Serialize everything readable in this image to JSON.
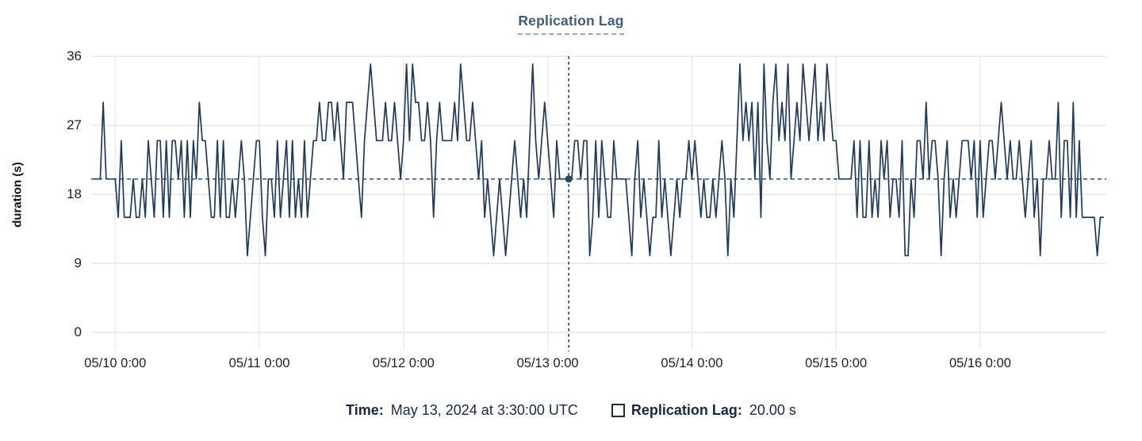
{
  "title": "Replication Lag",
  "colors": {
    "line": "#1e3a5f",
    "crosshair_h": "#2f587a",
    "crosshair_v": "#2e5a6e",
    "marker_dot": "#2b4964",
    "grid": "#e6e6e6",
    "title_text": "#3d5c80",
    "tick_text": "#1f1f1f",
    "footer_text": "#13294e"
  },
  "footer": {
    "time_label": "Time:",
    "time_value": "May 13, 2024 at 3:30:00 UTC",
    "series_icon": "legend-square-outline",
    "series_label": "Replication Lag:",
    "series_value": "20.00 s"
  },
  "chart_data": {
    "type": "line",
    "title": "Replication Lag",
    "series_name": "Replication Lag",
    "xlabel": "",
    "ylabel": "duration (s)",
    "ylim": [
      0,
      36
    ],
    "yticks": [
      0,
      9,
      18,
      27,
      36
    ],
    "grid": true,
    "x_tick_labels": [
      "05/10 0:00",
      "05/11 0:00",
      "05/12 0:00",
      "05/13 0:00",
      "05/14 0:00",
      "05/15 0:00",
      "05/16 0:00"
    ],
    "x_axis": {
      "domain_hours": 169,
      "data_start_hour": 0.5,
      "step_hours": 0.5,
      "first_tick_hour": 4,
      "tick_interval_hours": 24,
      "start_time": "2024-05-09 20:30 UTC",
      "end_time": "2024-05-16 20:30 UTC"
    },
    "crosshair": {
      "y_value": 20,
      "marker_index": 158,
      "marker_time": "May 13, 2024 at 3:30:00 UTC",
      "marker_value": 20.0
    },
    "values": [
      20,
      20,
      20,
      30,
      20,
      20,
      20,
      20,
      15,
      25,
      15,
      15,
      15,
      20,
      15,
      15,
      20,
      15,
      25,
      20,
      15,
      25,
      25,
      15,
      25,
      15,
      25,
      25,
      20,
      25,
      15,
      25,
      15,
      25,
      20,
      30,
      25,
      25,
      20,
      15,
      15,
      25,
      15,
      25,
      15,
      15,
      20,
      15,
      20,
      25,
      20,
      10,
      15,
      20,
      25,
      25,
      15,
      10,
      20,
      20,
      15,
      25,
      15,
      20,
      25,
      15,
      25,
      15,
      20,
      15,
      25,
      15,
      20,
      25,
      25,
      30,
      25,
      25,
      30,
      30,
      25,
      30,
      25,
      20,
      30,
      30,
      30,
      25,
      20,
      15,
      25,
      30,
      35,
      30,
      25,
      25,
      25,
      30,
      25,
      25,
      30,
      25,
      20,
      25,
      35,
      25,
      35,
      30,
      30,
      25,
      25,
      30,
      25,
      15,
      25,
      30,
      25,
      25,
      25,
      25,
      30,
      25,
      35,
      30,
      25,
      25,
      30,
      25,
      20,
      25,
      15,
      20,
      15,
      10,
      15,
      20,
      15,
      10,
      15,
      20,
      25,
      20,
      15,
      20,
      15,
      25,
      35,
      25,
      20,
      25,
      30,
      25,
      20,
      15,
      25,
      20,
      20,
      20,
      20,
      20,
      25,
      25,
      20,
      25,
      25,
      10,
      15,
      25,
      15,
      25,
      20,
      15,
      15,
      25,
      20,
      20,
      20,
      20,
      15,
      10,
      20,
      25,
      15,
      20,
      15,
      10,
      15,
      15,
      25,
      15,
      20,
      15,
      10,
      15,
      20,
      15,
      20,
      20,
      25,
      20,
      25,
      20,
      15,
      20,
      15,
      15,
      20,
      15,
      20,
      25,
      20,
      10,
      20,
      15,
      25,
      35,
      25,
      30,
      25,
      30,
      20,
      30,
      15,
      35,
      25,
      20,
      30,
      35,
      25,
      30,
      25,
      35,
      20,
      25,
      30,
      25,
      35,
      30,
      25,
      30,
      35,
      25,
      30,
      25,
      35,
      30,
      25,
      25,
      20,
      20,
      20,
      20,
      20,
      25,
      15,
      25,
      15,
      15,
      25,
      15,
      20,
      15,
      25,
      20,
      25,
      15,
      20,
      20,
      15,
      25,
      10,
      10,
      20,
      15,
      25,
      25,
      20,
      30,
      20,
      25,
      25,
      20,
      10,
      20,
      25,
      15,
      20,
      15,
      20,
      25,
      25,
      25,
      20,
      25,
      15,
      25,
      15,
      20,
      25,
      25,
      20,
      25,
      30,
      25,
      20,
      25,
      20,
      20,
      25,
      20,
      15,
      20,
      25,
      15,
      20,
      10,
      20,
      20,
      25,
      20,
      20,
      30,
      15,
      25,
      25,
      15,
      30,
      15,
      25,
      15,
      15,
      15,
      15,
      15,
      10,
      15,
      15
    ]
  }
}
